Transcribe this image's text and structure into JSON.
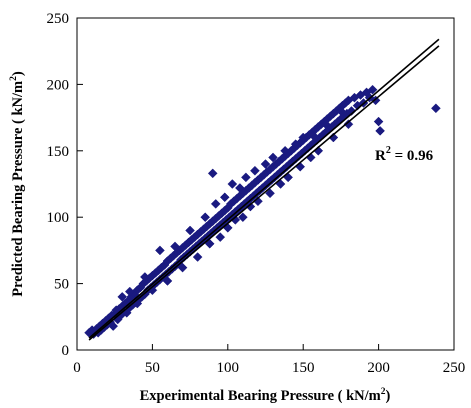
{
  "chart_data": {
    "type": "scatter",
    "title": "",
    "xlabel": {
      "text": "Experimental Bearing Pressure ( kN/m",
      "sup": "2",
      "tail": ")"
    },
    "ylabel": {
      "text": "Predicted Bearing Pressure  ( kN/m",
      "sup": "2",
      "tail": ")"
    },
    "xlim": [
      0,
      250
    ],
    "ylim": [
      0,
      250
    ],
    "xticks": [
      "0",
      "50",
      "100",
      "150",
      "200",
      "250"
    ],
    "yticks": [
      "0",
      "50",
      "100",
      "150",
      "200",
      "250"
    ],
    "grid": false,
    "marker": "diamond",
    "marker_color": "#1a1a80",
    "annotation": {
      "prefix": "R",
      "sup": "2",
      "suffix": " = 0.96"
    },
    "fit_lines": [
      {
        "x": [
          8,
          240
        ],
        "y": [
          9,
          234
        ]
      },
      {
        "x": [
          8,
          240
        ],
        "y": [
          7.5,
          229
        ]
      }
    ],
    "points": [
      [
        8,
        13
      ],
      [
        10,
        15
      ],
      [
        11,
        12
      ],
      [
        12,
        14
      ],
      [
        13,
        16
      ],
      [
        14,
        13
      ],
      [
        15,
        18
      ],
      [
        16,
        15
      ],
      [
        17,
        20
      ],
      [
        18,
        17
      ],
      [
        19,
        22
      ],
      [
        20,
        19
      ],
      [
        21,
        24
      ],
      [
        22,
        21
      ],
      [
        23,
        26
      ],
      [
        24,
        18
      ],
      [
        25,
        27
      ],
      [
        26,
        30
      ],
      [
        27,
        23
      ],
      [
        28,
        31
      ],
      [
        29,
        26
      ],
      [
        30,
        33
      ],
      [
        31,
        29
      ],
      [
        32,
        35
      ],
      [
        33,
        28
      ],
      [
        34,
        37
      ],
      [
        35,
        32
      ],
      [
        36,
        40
      ],
      [
        37,
        34
      ],
      [
        38,
        42
      ],
      [
        39,
        36
      ],
      [
        40,
        45
      ],
      [
        41,
        38
      ],
      [
        42,
        47
      ],
      [
        43,
        40
      ],
      [
        44,
        50
      ],
      [
        45,
        42
      ],
      [
        46,
        52
      ],
      [
        47,
        45
      ],
      [
        48,
        54
      ],
      [
        49,
        47
      ],
      [
        50,
        56
      ],
      [
        51,
        49
      ],
      [
        52,
        58
      ],
      [
        53,
        51
      ],
      [
        54,
        60
      ],
      [
        55,
        53
      ],
      [
        55,
        75
      ],
      [
        56,
        62
      ],
      [
        57,
        55
      ],
      [
        58,
        64
      ],
      [
        59,
        57
      ],
      [
        60,
        67
      ],
      [
        61,
        59
      ],
      [
        62,
        69
      ],
      [
        63,
        61
      ],
      [
        64,
        71
      ],
      [
        65,
        63
      ],
      [
        66,
        73
      ],
      [
        67,
        65
      ],
      [
        68,
        75
      ],
      [
        69,
        68
      ],
      [
        70,
        77
      ],
      [
        71,
        70
      ],
      [
        72,
        79
      ],
      [
        73,
        72
      ],
      [
        74,
        81
      ],
      [
        75,
        74
      ],
      [
        76,
        83
      ],
      [
        77,
        76
      ],
      [
        78,
        85
      ],
      [
        79,
        78
      ],
      [
        80,
        87
      ],
      [
        81,
        80
      ],
      [
        82,
        89
      ],
      [
        83,
        82
      ],
      [
        84,
        91
      ],
      [
        85,
        84
      ],
      [
        86,
        93
      ],
      [
        87,
        86
      ],
      [
        88,
        95
      ],
      [
        89,
        88
      ],
      [
        90,
        97
      ],
      [
        90,
        133
      ],
      [
        91,
        90
      ],
      [
        92,
        99
      ],
      [
        93,
        92
      ],
      [
        94,
        101
      ],
      [
        95,
        94
      ],
      [
        96,
        103
      ],
      [
        97,
        96
      ],
      [
        98,
        105
      ],
      [
        99,
        98
      ],
      [
        100,
        107
      ],
      [
        101,
        100
      ],
      [
        102,
        110
      ],
      [
        103,
        102
      ],
      [
        104,
        112
      ],
      [
        105,
        104
      ],
      [
        106,
        114
      ],
      [
        107,
        106
      ],
      [
        108,
        116
      ],
      [
        109,
        108
      ],
      [
        110,
        118
      ],
      [
        111,
        110
      ],
      [
        112,
        120
      ],
      [
        113,
        112
      ],
      [
        114,
        122
      ],
      [
        115,
        114
      ],
      [
        116,
        124
      ],
      [
        117,
        116
      ],
      [
        118,
        126
      ],
      [
        119,
        118
      ],
      [
        120,
        128
      ],
      [
        121,
        120
      ],
      [
        122,
        130
      ],
      [
        123,
        122
      ],
      [
        124,
        132
      ],
      [
        125,
        124
      ],
      [
        126,
        134
      ],
      [
        127,
        126
      ],
      [
        128,
        136
      ],
      [
        129,
        128
      ],
      [
        130,
        138
      ],
      [
        131,
        130
      ],
      [
        132,
        140
      ],
      [
        133,
        132
      ],
      [
        134,
        142
      ],
      [
        135,
        134
      ],
      [
        136,
        144
      ],
      [
        137,
        136
      ],
      [
        138,
        146
      ],
      [
        139,
        138
      ],
      [
        140,
        148
      ],
      [
        141,
        140
      ],
      [
        142,
        150
      ],
      [
        143,
        142
      ],
      [
        144,
        152
      ],
      [
        145,
        144
      ],
      [
        146,
        154
      ],
      [
        147,
        146
      ],
      [
        148,
        156
      ],
      [
        149,
        148
      ],
      [
        150,
        158
      ],
      [
        151,
        150
      ],
      [
        152,
        160
      ],
      [
        153,
        152
      ],
      [
        154,
        162
      ],
      [
        155,
        154
      ],
      [
        156,
        164
      ],
      [
        157,
        156
      ],
      [
        158,
        166
      ],
      [
        159,
        158
      ],
      [
        160,
        168
      ],
      [
        161,
        160
      ],
      [
        162,
        170
      ],
      [
        163,
        162
      ],
      [
        164,
        172
      ],
      [
        165,
        164
      ],
      [
        166,
        174
      ],
      [
        167,
        166
      ],
      [
        168,
        176
      ],
      [
        169,
        168
      ],
      [
        170,
        178
      ],
      [
        171,
        170
      ],
      [
        172,
        180
      ],
      [
        173,
        172
      ],
      [
        174,
        182
      ],
      [
        175,
        174
      ],
      [
        176,
        184
      ],
      [
        177,
        176
      ],
      [
        178,
        186
      ],
      [
        179,
        178
      ],
      [
        180,
        188
      ],
      [
        182,
        180
      ],
      [
        184,
        190
      ],
      [
        186,
        184
      ],
      [
        188,
        192
      ],
      [
        190,
        186
      ],
      [
        192,
        194
      ],
      [
        194,
        190
      ],
      [
        196,
        196
      ],
      [
        198,
        188
      ],
      [
        200,
        172
      ],
      [
        201,
        165
      ],
      [
        238,
        182
      ],
      [
        30,
        40
      ],
      [
        35,
        44
      ],
      [
        40,
        35
      ],
      [
        45,
        55
      ],
      [
        50,
        45
      ],
      [
        60,
        52
      ],
      [
        65,
        78
      ],
      [
        70,
        62
      ],
      [
        75,
        90
      ],
      [
        80,
        70
      ],
      [
        85,
        100
      ],
      [
        88,
        80
      ],
      [
        92,
        110
      ],
      [
        95,
        85
      ],
      [
        98,
        115
      ],
      [
        100,
        92
      ],
      [
        103,
        125
      ],
      [
        105,
        98
      ],
      [
        108,
        122
      ],
      [
        110,
        100
      ],
      [
        112,
        130
      ],
      [
        115,
        108
      ],
      [
        118,
        135
      ],
      [
        120,
        112
      ],
      [
        125,
        140
      ],
      [
        128,
        118
      ],
      [
        130,
        145
      ],
      [
        135,
        125
      ],
      [
        138,
        150
      ],
      [
        140,
        130
      ],
      [
        145,
        155
      ],
      [
        148,
        138
      ],
      [
        150,
        160
      ],
      [
        155,
        145
      ],
      [
        158,
        160
      ],
      [
        160,
        150
      ],
      [
        165,
        170
      ],
      [
        170,
        160
      ],
      [
        175,
        180
      ],
      [
        180,
        170
      ]
    ]
  }
}
